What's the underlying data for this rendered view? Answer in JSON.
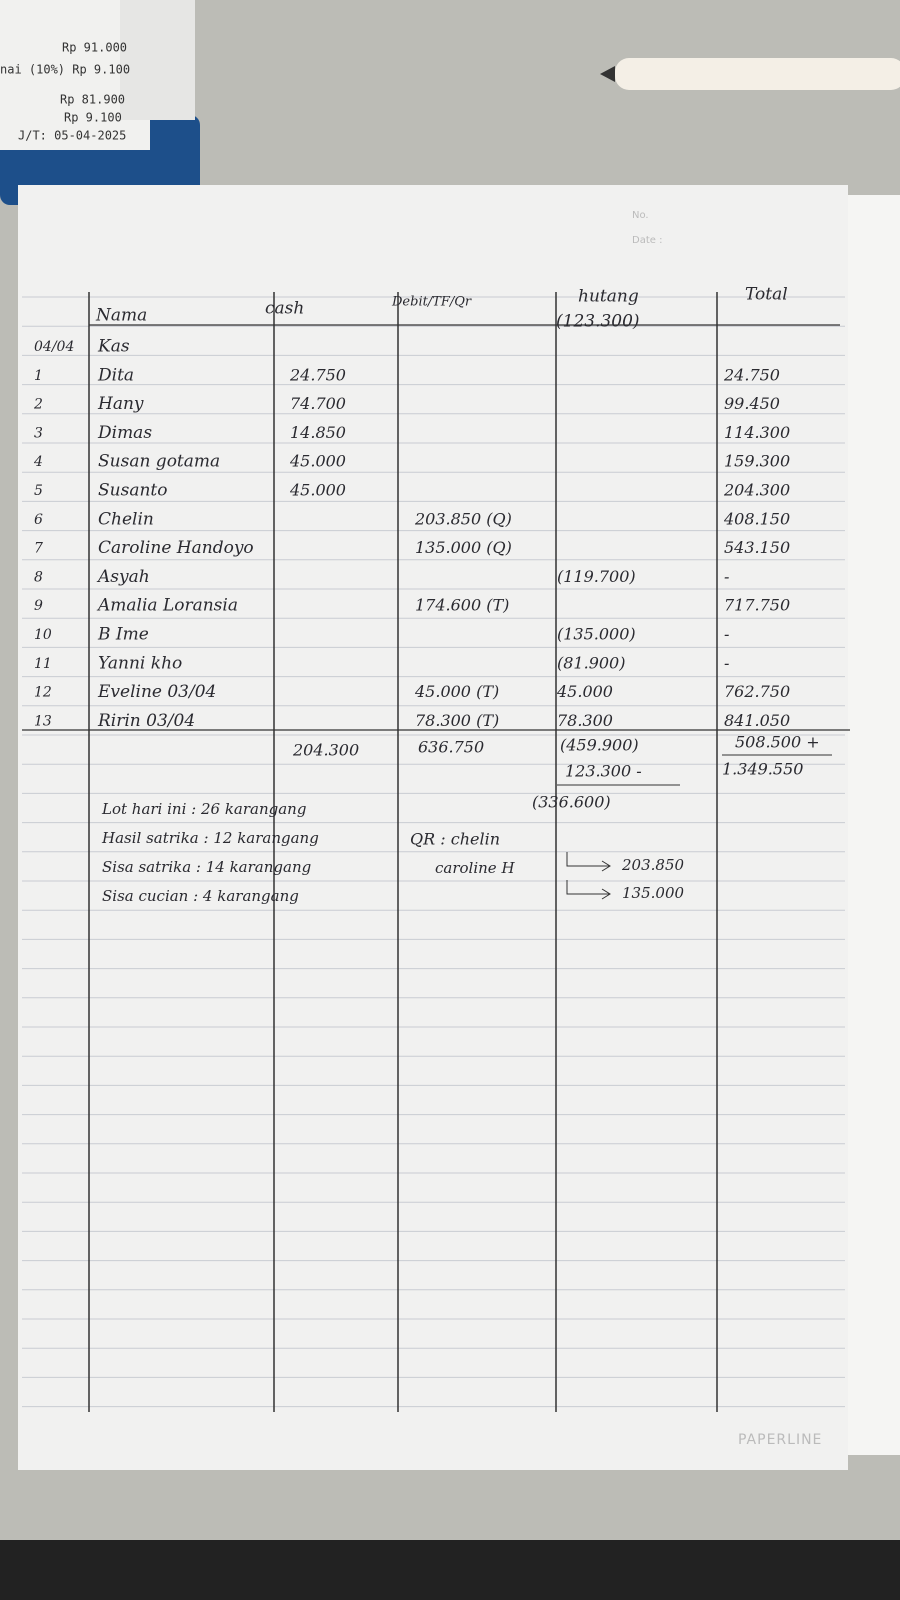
{
  "receipt": {
    "lines": [
      "Rp 91.000",
      "nai (10%) Rp 9.100",
      "Rp 81.900",
      "Rp 9.100",
      "J/T: 05-04-2025"
    ]
  },
  "page": {
    "no_label": "No.",
    "date_label": "Date :",
    "brand": "PAPERLINE"
  },
  "header": {
    "name": "Nama",
    "cash": "cash",
    "debit": "Debit/TF/Qr",
    "hutang": "hutang",
    "hutang_start": "(123.300)",
    "total": "Total"
  },
  "rows": [
    {
      "no": "04/04",
      "name": "Kas"
    },
    {
      "no": "1",
      "name": "Dita",
      "cash": "24.750",
      "total": "24.750"
    },
    {
      "no": "2",
      "name": "Hany",
      "cash": "74.700",
      "total": "99.450"
    },
    {
      "no": "3",
      "name": "Dimas",
      "cash": "14.850",
      "total": "114.300"
    },
    {
      "no": "4",
      "name": "Susan gotama",
      "cash": "45.000",
      "total": "159.300"
    },
    {
      "no": "5",
      "name": "Susanto",
      "cash": "45.000",
      "total": "204.300"
    },
    {
      "no": "6",
      "name": "Chelin",
      "debit": "203.850 (Q)",
      "total": "408.150"
    },
    {
      "no": "7",
      "name": "Caroline Handoyo",
      "debit": "135.000 (Q)",
      "total": "543.150"
    },
    {
      "no": "8",
      "name": "Asyah",
      "hutang": "(119.700)",
      "total": "-"
    },
    {
      "no": "9",
      "name": "Amalia Loransia",
      "debit": "174.600 (T)",
      "total": "717.750"
    },
    {
      "no": "10",
      "name": "B Ime",
      "hutang": "(135.000)",
      "total": "-"
    },
    {
      "no": "11",
      "name": "Yanni kho",
      "hutang": "(81.900)",
      "total": "-"
    },
    {
      "no": "12",
      "name": "Eveline 03/04",
      "debit": "45.000 (T)",
      "hutang": "45.000",
      "total": "762.750"
    },
    {
      "no": "13",
      "name": "Ririn 03/04",
      "debit": "78.300 (T)",
      "hutang": "78.300",
      "total": "841.050"
    }
  ],
  "totals": {
    "cash": "204.300",
    "debit": "636.750",
    "hutang": "(459.900)",
    "hutang_minus": "123.300 -",
    "hutang_result": "(336.600)",
    "total": "508.500 +",
    "total_result": "1.349.550"
  },
  "notes": [
    "Lot hari ini : 26 karangang",
    "Hasil satrika : 12 karangang",
    "Sisa satrika : 14 karangang",
    "Sisa cucian : 4 karangang"
  ],
  "qr": {
    "label": "QR : chelin",
    "second": "caroline H",
    "values": [
      "203.850",
      "135.000"
    ]
  }
}
